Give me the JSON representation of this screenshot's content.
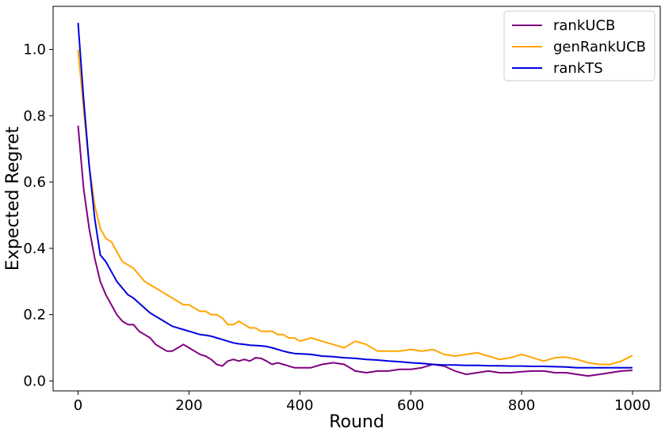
{
  "chart_data": {
    "type": "line",
    "xlabel": "Round",
    "ylabel": "Expected Regret",
    "xlim": [
      -45,
      1050
    ],
    "ylim": [
      -0.03,
      1.13
    ],
    "xticks": [
      0,
      200,
      400,
      600,
      800,
      1000
    ],
    "xtick_labels": [
      "0",
      "200",
      "400",
      "600",
      "800",
      "1000"
    ],
    "yticks": [
      0.0,
      0.2,
      0.4,
      0.6,
      0.8,
      1.0
    ],
    "ytick_labels": [
      "0.0",
      "0.2",
      "0.4",
      "0.6",
      "0.8",
      "1.0"
    ],
    "grid": false,
    "legend_position": "top-right",
    "series": [
      {
        "name": "rankUCB",
        "color": "#800080",
        "x": [
          0,
          10,
          20,
          30,
          40,
          50,
          60,
          70,
          80,
          90,
          100,
          110,
          120,
          130,
          140,
          150,
          160,
          170,
          180,
          190,
          200,
          210,
          220,
          230,
          240,
          250,
          260,
          270,
          280,
          290,
          300,
          310,
          320,
          330,
          340,
          350,
          360,
          370,
          380,
          390,
          400,
          420,
          440,
          460,
          480,
          500,
          520,
          540,
          560,
          580,
          600,
          620,
          640,
          660,
          680,
          700,
          720,
          740,
          760,
          780,
          800,
          820,
          840,
          860,
          880,
          900,
          920,
          940,
          960,
          980,
          1000
        ],
        "y": [
          0.77,
          0.58,
          0.46,
          0.37,
          0.3,
          0.26,
          0.23,
          0.2,
          0.18,
          0.17,
          0.17,
          0.15,
          0.14,
          0.13,
          0.11,
          0.1,
          0.09,
          0.09,
          0.1,
          0.11,
          0.1,
          0.09,
          0.08,
          0.075,
          0.065,
          0.05,
          0.045,
          0.06,
          0.065,
          0.06,
          0.065,
          0.06,
          0.07,
          0.068,
          0.06,
          0.05,
          0.055,
          0.05,
          0.045,
          0.04,
          0.04,
          0.04,
          0.05,
          0.055,
          0.05,
          0.03,
          0.025,
          0.03,
          0.03,
          0.035,
          0.035,
          0.04,
          0.05,
          0.045,
          0.03,
          0.02,
          0.025,
          0.03,
          0.025,
          0.025,
          0.028,
          0.03,
          0.03,
          0.025,
          0.025,
          0.02,
          0.015,
          0.02,
          0.025,
          0.03,
          0.032
        ]
      },
      {
        "name": "genRankUCB",
        "color": "#FFA500",
        "x": [
          0,
          10,
          20,
          30,
          40,
          50,
          60,
          70,
          80,
          90,
          100,
          110,
          120,
          130,
          140,
          150,
          160,
          170,
          180,
          190,
          200,
          210,
          220,
          230,
          240,
          250,
          260,
          270,
          280,
          290,
          300,
          310,
          320,
          330,
          340,
          350,
          360,
          370,
          380,
          390,
          400,
          420,
          440,
          460,
          480,
          500,
          520,
          540,
          560,
          580,
          600,
          620,
          640,
          660,
          680,
          700,
          720,
          740,
          760,
          780,
          800,
          820,
          840,
          860,
          880,
          900,
          920,
          940,
          960,
          980,
          1000
        ],
        "y": [
          1.0,
          0.82,
          0.65,
          0.53,
          0.46,
          0.43,
          0.42,
          0.39,
          0.36,
          0.35,
          0.34,
          0.32,
          0.3,
          0.29,
          0.28,
          0.27,
          0.26,
          0.25,
          0.24,
          0.23,
          0.23,
          0.22,
          0.21,
          0.21,
          0.2,
          0.2,
          0.19,
          0.17,
          0.17,
          0.18,
          0.17,
          0.16,
          0.16,
          0.15,
          0.15,
          0.15,
          0.14,
          0.14,
          0.13,
          0.13,
          0.12,
          0.13,
          0.12,
          0.11,
          0.1,
          0.12,
          0.11,
          0.09,
          0.09,
          0.09,
          0.095,
          0.09,
          0.095,
          0.08,
          0.075,
          0.08,
          0.085,
          0.075,
          0.065,
          0.07,
          0.08,
          0.07,
          0.06,
          0.07,
          0.072,
          0.065,
          0.055,
          0.05,
          0.05,
          0.06,
          0.077
        ]
      },
      {
        "name": "rankTS",
        "color": "#0000E0",
        "x": [
          0,
          10,
          20,
          30,
          40,
          50,
          60,
          70,
          80,
          90,
          100,
          110,
          120,
          130,
          140,
          150,
          160,
          170,
          180,
          190,
          200,
          210,
          220,
          230,
          240,
          250,
          260,
          270,
          280,
          290,
          300,
          310,
          320,
          330,
          340,
          350,
          360,
          370,
          380,
          390,
          400,
          420,
          440,
          460,
          480,
          500,
          520,
          540,
          560,
          580,
          600,
          620,
          640,
          660,
          680,
          700,
          720,
          740,
          760,
          780,
          800,
          820,
          840,
          860,
          880,
          900,
          920,
          940,
          960,
          980,
          1000
        ],
        "y": [
          1.08,
          0.85,
          0.65,
          0.49,
          0.38,
          0.36,
          0.33,
          0.3,
          0.28,
          0.26,
          0.25,
          0.235,
          0.22,
          0.205,
          0.195,
          0.185,
          0.175,
          0.165,
          0.16,
          0.155,
          0.15,
          0.145,
          0.14,
          0.138,
          0.135,
          0.13,
          0.125,
          0.12,
          0.115,
          0.112,
          0.11,
          0.108,
          0.107,
          0.106,
          0.104,
          0.1,
          0.095,
          0.09,
          0.086,
          0.083,
          0.082,
          0.08,
          0.075,
          0.073,
          0.07,
          0.068,
          0.065,
          0.063,
          0.06,
          0.058,
          0.055,
          0.053,
          0.05,
          0.048,
          0.048,
          0.047,
          0.047,
          0.046,
          0.046,
          0.045,
          0.045,
          0.044,
          0.044,
          0.043,
          0.042,
          0.04,
          0.04,
          0.04,
          0.04,
          0.04,
          0.04
        ]
      }
    ]
  }
}
